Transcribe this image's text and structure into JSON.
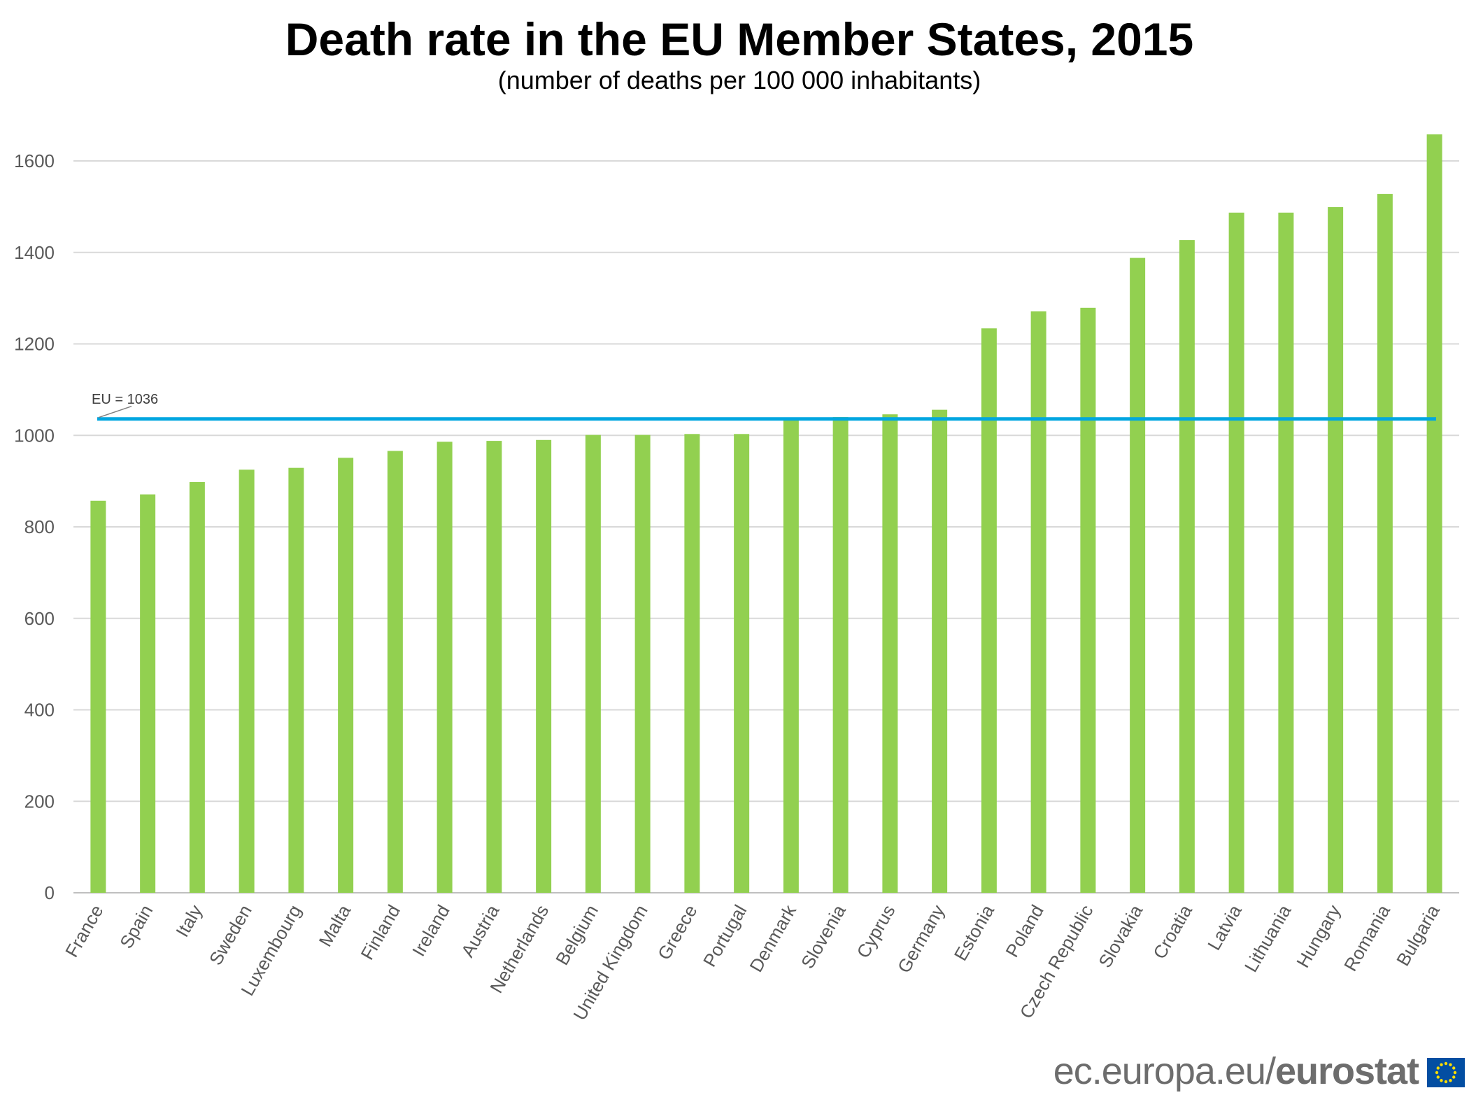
{
  "chart_data": {
    "type": "bar",
    "title": "Death rate in the EU Member States, 2015",
    "subtitle": "(number of deaths per 100 000 inhabitants)",
    "xlabel": "",
    "ylabel": "",
    "ylim": [
      0,
      1700
    ],
    "yticks": [
      0,
      200,
      400,
      600,
      800,
      1000,
      1200,
      1400,
      1600
    ],
    "grid": true,
    "categories": [
      "France",
      "Spain",
      "Italy",
      "Sweden",
      "Luxembourg",
      "Malta",
      "Finland",
      "Ireland",
      "Austria",
      "Netherlands",
      "Belgium",
      "United Kingdom",
      "Greece",
      "Portugal",
      "Denmark",
      "Slovenia",
      "Cyprus",
      "Germany",
      "Estonia",
      "Poland",
      "Czech Republic",
      "Slovakia",
      "Croatia",
      "Latvia",
      "Lithuania",
      "Hungary",
      "Romania",
      "Bulgaria"
    ],
    "values": [
      857,
      871,
      898,
      925,
      929,
      951,
      966,
      986,
      988,
      990,
      1001,
      1001,
      1003,
      1003,
      1033,
      1040,
      1046,
      1056,
      1234,
      1271,
      1279,
      1388,
      1427,
      1487,
      1487,
      1499,
      1528,
      1658
    ],
    "reference_line": {
      "label": "EU = 1036",
      "value": 1036,
      "color": "#00a6e0"
    },
    "bar_color": "#92d050"
  },
  "footer": {
    "site": "ec.europa.eu/",
    "brand": "eurostat"
  },
  "logo": "eu-flag-icon"
}
